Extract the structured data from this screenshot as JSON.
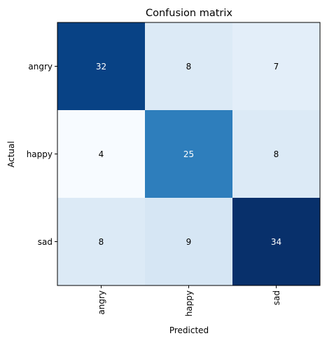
{
  "chart_data": {
    "type": "heatmap",
    "title": "Confusion matrix",
    "xlabel": "Predicted",
    "ylabel": "Actual",
    "x_categories": [
      "angry",
      "happy",
      "sad"
    ],
    "y_categories": [
      "angry",
      "happy",
      "sad"
    ],
    "values": [
      [
        32,
        8,
        7
      ],
      [
        4,
        25,
        8
      ],
      [
        8,
        9,
        34
      ]
    ],
    "colormap": "Blues",
    "x_tick_rotation": 90,
    "grid": false
  }
}
